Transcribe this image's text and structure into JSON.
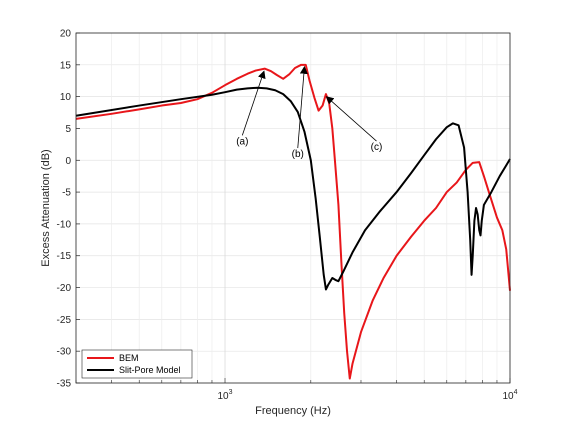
{
  "chart_data": {
    "type": "line",
    "xscale": "log",
    "xlim": [
      300,
      10000
    ],
    "ylim": [
      -35,
      20
    ],
    "xlabel": "Frequency (Hz)",
    "ylabel": "Excess Attenuation (dB)",
    "grid": true,
    "legend_position": "bottom-left",
    "yticks": [
      {
        "v": 20,
        "label": "20"
      },
      {
        "v": 15,
        "label": "15"
      },
      {
        "v": 10,
        "label": "10"
      },
      {
        "v": 5,
        "label": "5"
      },
      {
        "v": 0,
        "label": "0"
      },
      {
        "v": -5,
        "label": "-5"
      },
      {
        "v": -10,
        "label": "-10"
      },
      {
        "v": -15,
        "label": "-15"
      },
      {
        "v": -20,
        "label": "-20"
      },
      {
        "v": -25,
        "label": "-25"
      },
      {
        "v": -30,
        "label": "-30"
      },
      {
        "v": -35,
        "label": "-35"
      }
    ],
    "xticks": [
      {
        "v": 1000,
        "base": "10",
        "exp": "3"
      },
      {
        "v": 10000,
        "base": "10",
        "exp": "4"
      }
    ],
    "series": [
      {
        "name": "BEM",
        "color": "#e8161a",
        "points": [
          [
            300,
            6.5
          ],
          [
            400,
            7.3
          ],
          [
            500,
            8.0
          ],
          [
            600,
            8.6
          ],
          [
            700,
            9.0
          ],
          [
            800,
            9.6
          ],
          [
            900,
            10.6
          ],
          [
            1000,
            11.8
          ],
          [
            1100,
            12.8
          ],
          [
            1200,
            13.6
          ],
          [
            1280,
            14.1
          ],
          [
            1380,
            14.4
          ],
          [
            1450,
            14.0
          ],
          [
            1520,
            13.4
          ],
          [
            1600,
            12.8
          ],
          [
            1680,
            13.5
          ],
          [
            1760,
            14.5
          ],
          [
            1850,
            15.0
          ],
          [
            1920,
            15.0
          ],
          [
            1980,
            12.5
          ],
          [
            2060,
            9.8
          ],
          [
            2130,
            7.8
          ],
          [
            2200,
            8.6
          ],
          [
            2260,
            10.4
          ],
          [
            2320,
            9.0
          ],
          [
            2380,
            5.0
          ],
          [
            2430,
            0.0
          ],
          [
            2500,
            -7.0
          ],
          [
            2560,
            -16.0
          ],
          [
            2620,
            -24.0
          ],
          [
            2680,
            -30.0
          ],
          [
            2740,
            -34.3
          ],
          [
            2800,
            -32.0
          ],
          [
            3000,
            -27.0
          ],
          [
            3300,
            -22.0
          ],
          [
            3600,
            -18.5
          ],
          [
            4000,
            -15.0
          ],
          [
            4500,
            -12.0
          ],
          [
            5000,
            -9.5
          ],
          [
            5500,
            -7.5
          ],
          [
            6000,
            -5.0
          ],
          [
            6500,
            -3.5
          ],
          [
            7000,
            -1.5
          ],
          [
            7400,
            -0.4
          ],
          [
            7800,
            -0.3
          ],
          [
            8100,
            -2.5
          ],
          [
            8500,
            -5.5
          ],
          [
            9000,
            -9.0
          ],
          [
            9400,
            -11.0
          ],
          [
            9700,
            -14.0
          ],
          [
            10000,
            -20.5
          ]
        ]
      },
      {
        "name": "Slit-Pore Model",
        "color": "#000000",
        "points": [
          [
            300,
            7.0
          ],
          [
            500,
            8.6
          ],
          [
            700,
            9.6
          ],
          [
            900,
            10.3
          ],
          [
            1000,
            10.7
          ],
          [
            1100,
            11.1
          ],
          [
            1200,
            11.3
          ],
          [
            1300,
            11.4
          ],
          [
            1400,
            11.3
          ],
          [
            1500,
            11.0
          ],
          [
            1600,
            10.4
          ],
          [
            1700,
            9.3
          ],
          [
            1800,
            7.6
          ],
          [
            1900,
            4.5
          ],
          [
            2000,
            0.0
          ],
          [
            2080,
            -6.0
          ],
          [
            2150,
            -12.0
          ],
          [
            2220,
            -18.0
          ],
          [
            2260,
            -20.3
          ],
          [
            2300,
            -19.6
          ],
          [
            2380,
            -18.5
          ],
          [
            2440,
            -18.8
          ],
          [
            2500,
            -19.0
          ],
          [
            2600,
            -17.5
          ],
          [
            2800,
            -14.5
          ],
          [
            3100,
            -11.0
          ],
          [
            3500,
            -8.0
          ],
          [
            4000,
            -5.0
          ],
          [
            4500,
            -2.0
          ],
          [
            5000,
            0.8
          ],
          [
            5500,
            3.3
          ],
          [
            6000,
            5.2
          ],
          [
            6300,
            5.8
          ],
          [
            6600,
            5.5
          ],
          [
            6900,
            2.0
          ],
          [
            7100,
            -5.0
          ],
          [
            7250,
            -12.5
          ],
          [
            7330,
            -18.0
          ],
          [
            7400,
            -15.0
          ],
          [
            7500,
            -9.5
          ],
          [
            7600,
            -7.5
          ],
          [
            7700,
            -8.5
          ],
          [
            7800,
            -11.0
          ],
          [
            7880,
            -11.8
          ],
          [
            7960,
            -9.5
          ],
          [
            8100,
            -7.0
          ],
          [
            8600,
            -5.0
          ],
          [
            9200,
            -2.5
          ],
          [
            9700,
            -0.8
          ],
          [
            10000,
            0.2
          ]
        ]
      }
    ],
    "annotations": [
      {
        "text": "(a)",
        "tip": [
          1370,
          14.3
        ],
        "label": [
          1150,
          2.5
        ]
      },
      {
        "text": "(b)",
        "tip": [
          1900,
          15.0
        ],
        "label": [
          1800,
          0.5
        ]
      },
      {
        "text": "(c)",
        "tip": [
          2270,
          10.3
        ],
        "label": [
          3400,
          1.6
        ]
      }
    ]
  }
}
